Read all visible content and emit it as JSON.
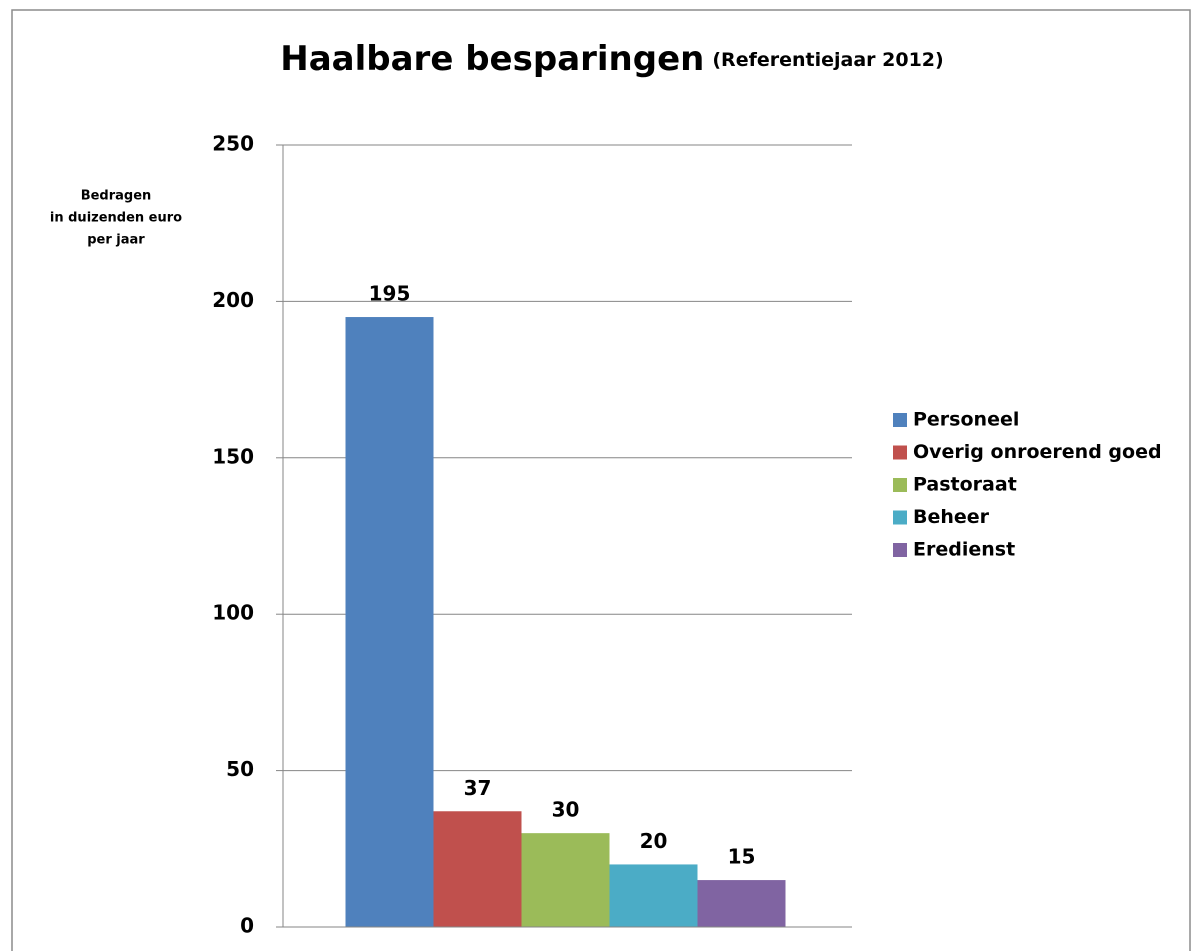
{
  "chart_data": {
    "type": "bar",
    "title": "Haalbare besparingen",
    "subtitle": "(Referentiejaar 2012)",
    "ylabel": [
      "Bedragen",
      "in duizenden euro",
      "per jaar"
    ],
    "categories": [
      null
    ],
    "series": [
      {
        "name": "Personeel",
        "color": "#4f81bd",
        "values": [
          195
        ]
      },
      {
        "name": "Overig onroerend goed",
        "color": "#c0504d",
        "values": [
          37
        ]
      },
      {
        "name": "Pastoraat",
        "color": "#9bbb59",
        "values": [
          30
        ]
      },
      {
        "name": "Beheer",
        "color": "#4bacc6",
        "values": [
          20
        ]
      },
      {
        "name": "Eredienst",
        "color": "#8064a2",
        "values": [
          15
        ]
      }
    ],
    "ylim": [
      0,
      250
    ],
    "yticks": [
      0,
      50,
      100,
      150,
      200,
      250
    ],
    "grid": true,
    "legend": "right"
  }
}
